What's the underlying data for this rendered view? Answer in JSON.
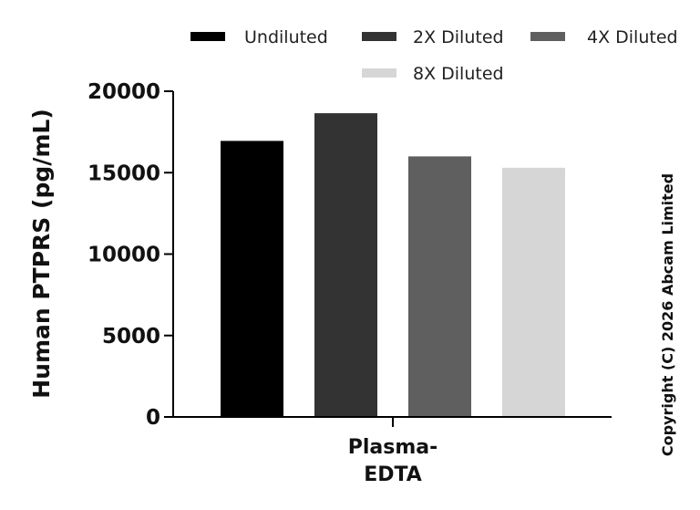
{
  "chart_data": {
    "type": "bar",
    "categories": [
      "Plasma-EDTA"
    ],
    "category_label_lines": [
      "Plasma-",
      "EDTA"
    ],
    "series": [
      {
        "name": "Undiluted",
        "values": [
          16950
        ],
        "color": "#000000"
      },
      {
        "name": "2X Diluted",
        "values": [
          18650
        ],
        "color": "#333333"
      },
      {
        "name": "4X Diluted",
        "values": [
          16000
        ],
        "color": "#5f5f5f"
      },
      {
        "name": "8X Diluted",
        "values": [
          15300
        ],
        "color": "#d6d6d6"
      }
    ],
    "title": "",
    "xlabel": "",
    "ylabel": "Human PTPRS (pg/mL)",
    "ylim": [
      0,
      20000
    ],
    "yticks": [
      0,
      5000,
      10000,
      15000,
      20000
    ],
    "grid": false,
    "legend_position": "top"
  },
  "copyright": "Copyright (C) 2026 Abcam Limited"
}
